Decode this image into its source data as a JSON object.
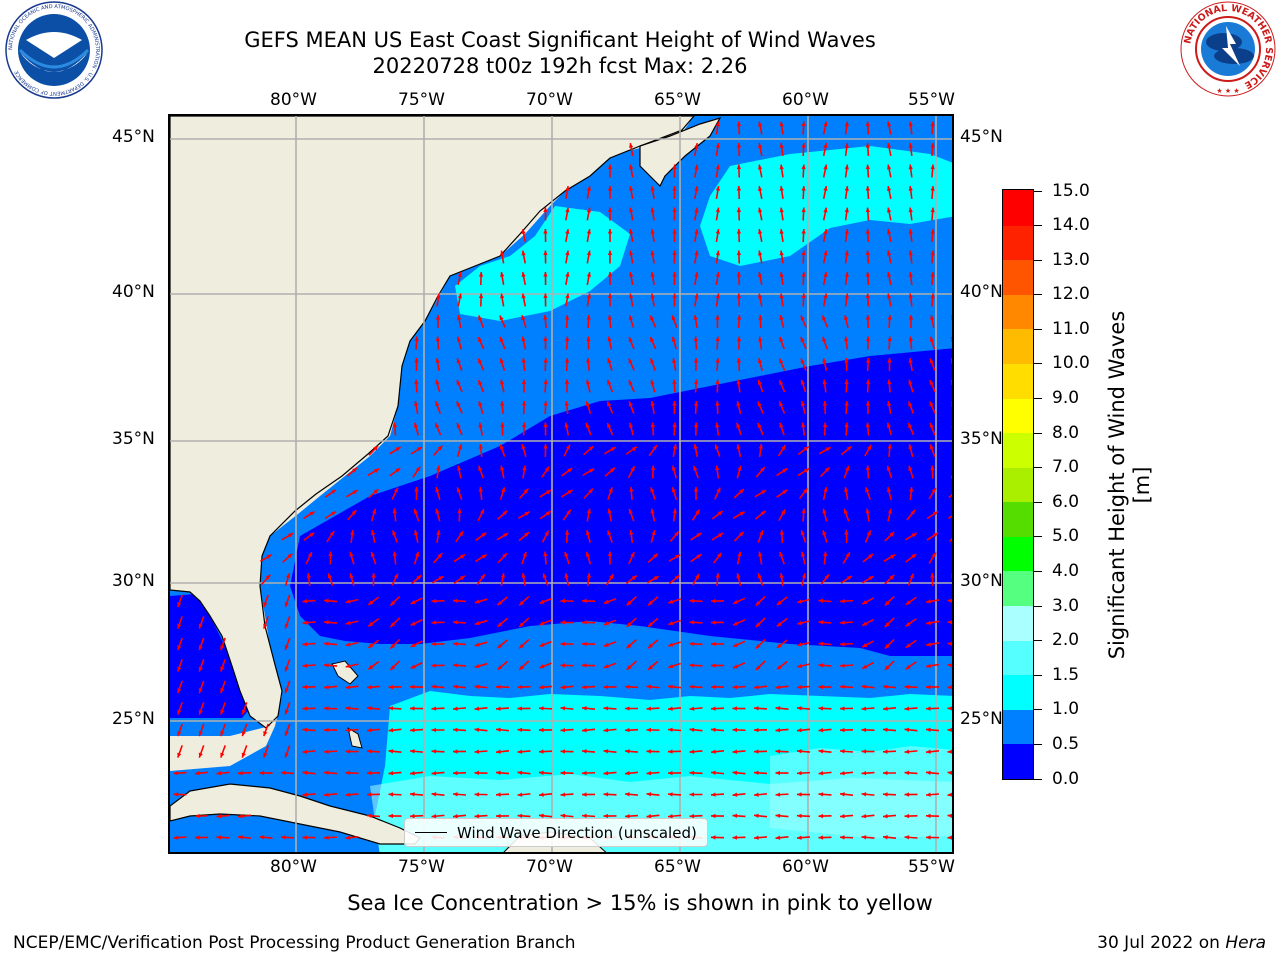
{
  "header": {
    "title_line1": "GEFS MEAN US East Coast Significant Height of Wind Waves",
    "title_line2": "20220728 t00z 192h fcst   Max: 2.26"
  },
  "map": {
    "longitude_labels": [
      "80°W",
      "75°W",
      "70°W",
      "65°W",
      "60°W",
      "55°W"
    ],
    "latitude_labels": [
      "45°N",
      "40°N",
      "35°N",
      "30°N",
      "25°N"
    ],
    "gridlines": true,
    "land_color": "#efedde",
    "vector_color": "#ff0000",
    "legend_entry": "Wind Wave Direction (unscaled)"
  },
  "colorbar": {
    "label": "Significant Height of Wind Waves [m]",
    "ticks": [
      "0.0",
      "0.5",
      "1.0",
      "1.5",
      "2.0",
      "3.0",
      "4.0",
      "5.0",
      "6.0",
      "7.0",
      "8.0",
      "9.0",
      "10.0",
      "11.0",
      "12.0",
      "13.0",
      "14.0",
      "15.0"
    ],
    "colors": [
      "#0000ff",
      "#0080ff",
      "#00ffff",
      "#55ffff",
      "#aaffff",
      "#55ff80",
      "#00ff00",
      "#55dd00",
      "#aaee00",
      "#ccff00",
      "#ffff00",
      "#ffdd00",
      "#ffbb00",
      "#ff8800",
      "#ff5500",
      "#ff2200",
      "#ff0000"
    ]
  },
  "sea_ice_note": "Sea Ice Concentration > 15% is shown in pink to yellow",
  "footer": {
    "left": "NCEP/EMC/Verification Post Processing Product Generation Branch",
    "right_prefix": "30 Jul 2022 on ",
    "right_host": "Hera"
  },
  "logos": {
    "left": "NOAA",
    "left_ring_text": "NATIONAL OCEANIC AND ATMOSPHERIC ADMINISTRATION · U.S. DEPARTMENT OF COMMERCE",
    "right_ring_text": "NATIONAL WEATHER SERVICE"
  }
}
